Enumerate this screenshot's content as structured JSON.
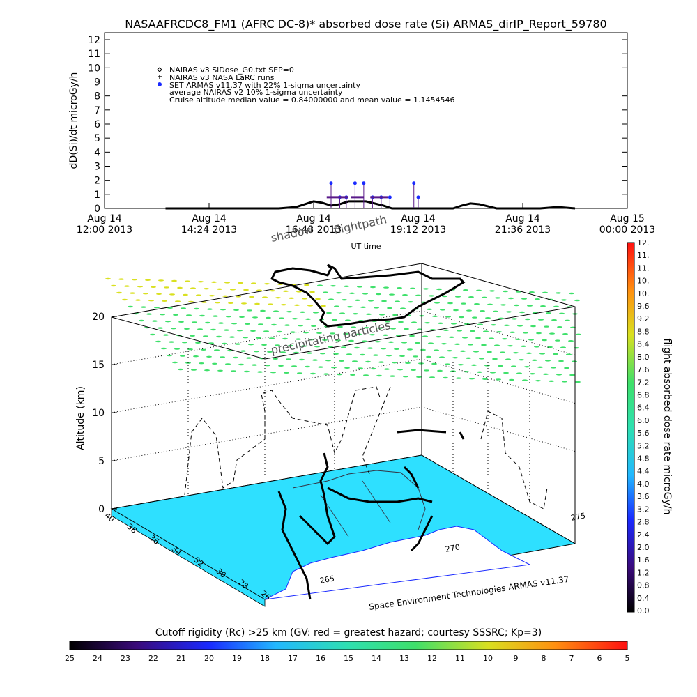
{
  "title": "NASAAFRCDC8_FM1 (AFRC DC-8)* absorbed dose rate (Si) ARMAS_dirIP_Report_59780",
  "chart_data": [
    {
      "type": "line",
      "ylabel": "dD(Si)/dt microGy/h",
      "xlabel": "UT time",
      "ylim": [
        0,
        12
      ],
      "yticks": [
        "0",
        "1",
        "2",
        "3",
        "4",
        "5",
        "6",
        "7",
        "8",
        "9",
        "10",
        "11",
        "12"
      ],
      "xticks": [
        {
          "top": "Aug 14",
          "bottom": "12:00 2013"
        },
        {
          "top": "Aug 14",
          "bottom": "14:24 2013"
        },
        {
          "top": "Aug 14",
          "bottom": "16:48 2013"
        },
        {
          "top": "Aug 14",
          "bottom": "19:12 2013"
        },
        {
          "top": "Aug 14",
          "bottom": "21:36 2013"
        },
        {
          "top": "Aug 15",
          "bottom": "00:00 2013"
        }
      ],
      "legend": [
        "NAIRAS v3 SiDose_G0.txt SEP=0",
        "NAIRAS v3 NASA LaRC runs",
        "SET ARMAS v11.37 with 22% 1-sigma uncertainty",
        "average NAIRAS v2 10% 1-sigma uncertainty",
        "Cruise altitude median value = 0.84000000 and mean value = 1.1454546"
      ],
      "series": [
        {
          "name": "NAIRAS v3 SiDose_G0.txt SEP=0",
          "x_hours": [
            13.4,
            14.0,
            15.0,
            16.0,
            16.4,
            16.6,
            16.8,
            17.0,
            17.2,
            17.4,
            17.6,
            17.8,
            18.0,
            18.4,
            18.6,
            18.8,
            19.0,
            19.2,
            19.6,
            20.0,
            20.2,
            20.4,
            20.6,
            21.0,
            21.6,
            22.0,
            22.4,
            22.8
          ],
          "values": [
            0,
            0,
            0,
            0,
            0.1,
            0.3,
            0.5,
            0.4,
            0.2,
            0.3,
            0.5,
            0.5,
            0.5,
            0.2,
            0,
            0,
            0,
            0,
            0,
            0,
            0.2,
            0.35,
            0.3,
            0,
            0,
            0,
            0.1,
            0
          ]
        },
        {
          "name": "SET ARMAS v11.37 with 22% 1-sigma uncertainty",
          "x_hours": [
            17.2,
            17.4,
            17.55,
            17.75,
            17.95,
            18.15,
            18.35,
            18.55,
            19.1,
            19.2
          ],
          "values": [
            1.8,
            0.8,
            0.8,
            1.8,
            1.8,
            0.8,
            0.8,
            0.8,
            1.8,
            0.8
          ]
        }
      ]
    },
    {
      "type": "area",
      "ylabel": "Altitude (km)",
      "zticks": [
        "0",
        "5",
        "10",
        "15",
        "20"
      ],
      "lat_ticks": [
        "40",
        "38",
        "36",
        "34",
        "32",
        "30",
        "28",
        "26"
      ],
      "lon_ticks": [
        "265",
        "270",
        "275"
      ],
      "annotations": {
        "shadow": "shadow",
        "flightpath": "flightpath",
        "precip": "precipitating particles",
        "credit": "Space Environment Technologies ARMAS v11.37"
      }
    }
  ],
  "colorbar_right": {
    "label": "flight absorbed dose rate microGy/h",
    "ticks": [
      "0.0",
      "0.4",
      "0.8",
      "1.2",
      "1.6",
      "2.0",
      "2.4",
      "2.8",
      "3.2",
      "3.6",
      "4.0",
      "4.4",
      "4.8",
      "5.2",
      "5.6",
      "6.0",
      "6.4",
      "6.8",
      "7.2",
      "7.6",
      "8.0",
      "8.4",
      "8.8",
      "9.2",
      "9.6",
      "10.",
      "10.",
      "11.",
      "11.",
      "12."
    ]
  },
  "colorbar_bottom": {
    "label": "Cutoff rigidity (Rc) >25 km (GV: red = greatest hazard; courtesy SSSRC; Kp=3)",
    "ticks": [
      "25",
      "24",
      "23",
      "22",
      "21",
      "20",
      "19",
      "18",
      "17",
      "16",
      "15",
      "14",
      "13",
      "12",
      "11",
      "10",
      "9",
      "8",
      "7",
      "6",
      "5"
    ]
  },
  "colors": {
    "ground": "#2ee0ff",
    "precip_green": "#3ee06a",
    "precip_yellow": "#d9e020",
    "armas_marker": "#1a2aff",
    "armas_line": "#5a1a8a"
  }
}
